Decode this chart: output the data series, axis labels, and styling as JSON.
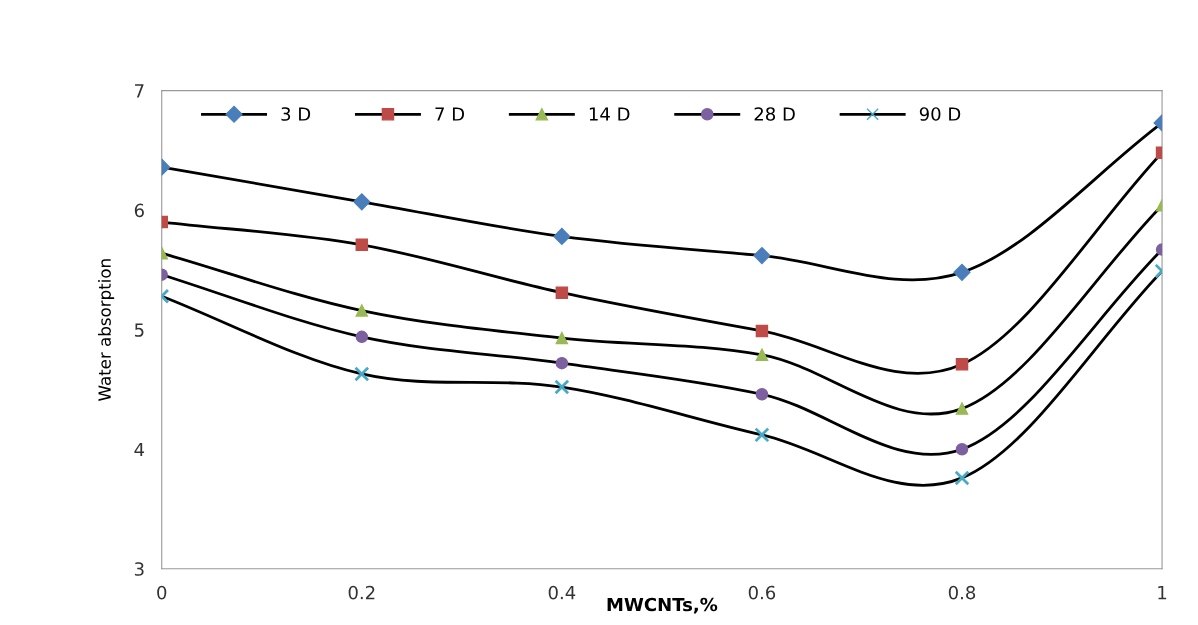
{
  "chart_data": {
    "type": "line",
    "xlabel": "MWCNTs,%",
    "ylabel": "Water absorption",
    "x": [
      0,
      0.2,
      0.4,
      0.6,
      0.8,
      1
    ],
    "xlim": [
      0,
      1
    ],
    "xticks": [
      0,
      0.2,
      0.4,
      0.6,
      0.8,
      1
    ],
    "ylim": [
      3,
      7
    ],
    "yticks": [
      3,
      4,
      5,
      6,
      7
    ],
    "grid": false,
    "legend": "top",
    "series": [
      {
        "name": "3 D",
        "color": "#4a7ebb",
        "marker": "diamond",
        "values": [
          6.36,
          6.07,
          5.78,
          5.62,
          5.48,
          6.73
        ]
      },
      {
        "name": "7 D",
        "color": "#be4b48",
        "marker": "square",
        "values": [
          5.9,
          5.71,
          5.31,
          4.99,
          4.71,
          6.48
        ]
      },
      {
        "name": "14 D",
        "color": "#98b954",
        "marker": "triangle",
        "values": [
          5.64,
          5.16,
          4.93,
          4.79,
          4.34,
          6.04
        ]
      },
      {
        "name": "28 D",
        "color": "#7d60a0",
        "marker": "circle",
        "values": [
          5.46,
          4.94,
          4.72,
          4.46,
          4.0,
          5.67
        ]
      },
      {
        "name": "90 D",
        "color": "#46aac5",
        "marker": "cross",
        "values": [
          5.28,
          4.63,
          4.52,
          4.12,
          3.76,
          5.49
        ]
      }
    ]
  }
}
